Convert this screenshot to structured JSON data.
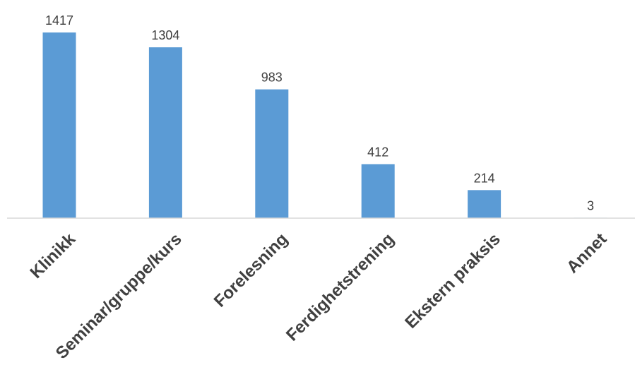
{
  "chart_data": {
    "type": "bar",
    "title": "",
    "xlabel": "",
    "ylabel": "",
    "categories": [
      "Klinikk",
      "Seminar/gruppe/kurs",
      "Forelesning",
      "Ferdighetstrening",
      "Ekstern praksis",
      "Annet"
    ],
    "values": [
      1417,
      1304,
      983,
      412,
      214,
      3
    ],
    "value_labels": [
      "1417",
      "1304",
      "983",
      "412",
      "214",
      "3"
    ],
    "ylim": [
      0,
      1417
    ],
    "grid": false,
    "legend": "none",
    "tick_label_rotation": "-45deg",
    "colors": {
      "bar": "#5B9BD5",
      "axis": "#d9d9d9",
      "text": "#404040"
    }
  }
}
